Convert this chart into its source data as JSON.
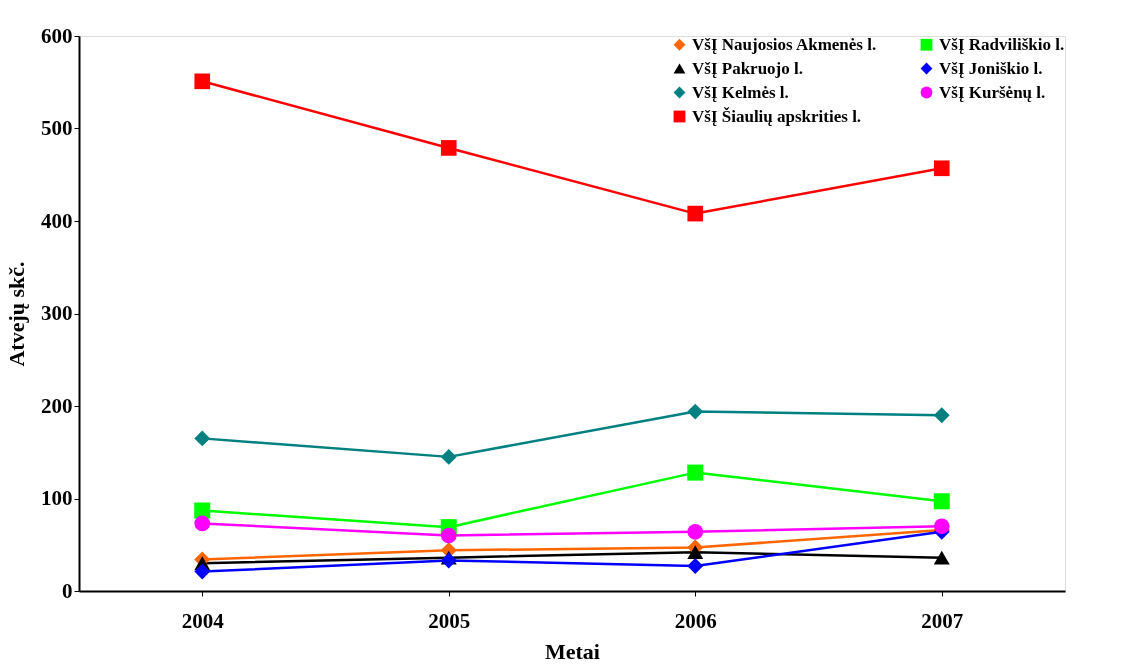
{
  "chart_data": {
    "type": "line",
    "xlabel": "Metai",
    "ylabel": "Atvejų skč.",
    "categories": [
      "2004",
      "2005",
      "2006",
      "2007"
    ],
    "ylim": [
      0,
      600
    ],
    "yticks": [
      0,
      100,
      200,
      300,
      400,
      500,
      600
    ],
    "grid": false,
    "legend": "top right",
    "series": [
      {
        "name": "VšĮ Naujosios Akmenės l.",
        "color": "#ff6600",
        "marker": "diamond",
        "values": [
          34,
          44,
          47,
          66
        ]
      },
      {
        "name": "VšĮ Radviliškio l.",
        "color": "#00ff00",
        "marker": "square",
        "values": [
          87,
          69,
          128,
          97
        ]
      },
      {
        "name": "VšĮ Pakruojo l.",
        "color": "#000000",
        "marker": "triangle",
        "values": [
          30,
          36,
          42,
          36
        ]
      },
      {
        "name": "VšĮ Joniškio l.",
        "color": "#0000ff",
        "marker": "diamond",
        "values": [
          21,
          33,
          27,
          64
        ]
      },
      {
        "name": "VšĮ Kelmės l.",
        "color": "#008080",
        "marker": "diamond",
        "values": [
          165,
          145,
          194,
          190
        ]
      },
      {
        "name": "VšĮ Kuršėnų l.",
        "color": "#ff00ff",
        "marker": "circle",
        "values": [
          73,
          60,
          64,
          70
        ]
      },
      {
        "name": "VšĮ Šiaulių apskrities l.",
        "color": "#ff0000",
        "marker": "square",
        "values": [
          551,
          479,
          408,
          457
        ]
      }
    ]
  }
}
